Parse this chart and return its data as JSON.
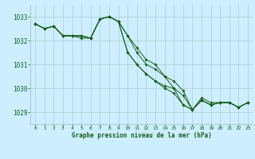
{
  "title": "Graphe pression niveau de la mer (hPa)",
  "bg_color": "#cceeff",
  "grid_color": "#aacccc",
  "line_color": "#1a5c1a",
  "xlim": [
    -0.5,
    23.5
  ],
  "ylim": [
    1028.5,
    1033.5
  ],
  "yticks": [
    1029,
    1030,
    1031,
    1032,
    1033
  ],
  "xticks": [
    0,
    1,
    2,
    3,
    4,
    5,
    6,
    7,
    8,
    9,
    10,
    11,
    12,
    13,
    14,
    15,
    16,
    17,
    18,
    19,
    20,
    21,
    22,
    23
  ],
  "series": [
    [
      1032.7,
      1032.5,
      1032.6,
      1032.2,
      1032.2,
      1032.2,
      1032.1,
      1032.9,
      1033.0,
      1032.8,
      1032.2,
      1031.7,
      1031.2,
      1031.0,
      1030.5,
      1030.0,
      1029.3,
      1029.1,
      1029.6,
      1029.4,
      1029.4,
      1029.4,
      1029.2,
      1029.4
    ],
    [
      1032.7,
      1032.5,
      1032.6,
      1032.2,
      1032.2,
      1032.1,
      1032.1,
      1032.9,
      1033.0,
      1032.8,
      1031.5,
      1031.0,
      1030.6,
      1030.3,
      1030.1,
      1030.0,
      1029.7,
      1029.1,
      1029.5,
      1029.3,
      1029.4,
      1029.4,
      1029.2,
      1029.4
    ],
    [
      1032.7,
      1032.5,
      1032.6,
      1032.2,
      1032.2,
      1032.2,
      1032.1,
      1032.9,
      1033.0,
      1032.8,
      1031.5,
      1031.0,
      1030.6,
      1030.3,
      1030.0,
      1029.8,
      1029.3,
      1029.1,
      1029.5,
      1029.3,
      1029.4,
      1029.4,
      1029.2,
      1029.4
    ],
    [
      1032.7,
      1032.5,
      1032.6,
      1032.2,
      1032.2,
      1032.2,
      1032.1,
      1032.9,
      1033.0,
      1032.8,
      1032.2,
      1031.5,
      1031.0,
      1030.8,
      1030.5,
      1030.3,
      1029.9,
      1029.1,
      1029.5,
      1029.3,
      1029.4,
      1029.4,
      1029.2,
      1029.4
    ]
  ],
  "figwidth": 3.2,
  "figheight": 2.0,
  "dpi": 100
}
